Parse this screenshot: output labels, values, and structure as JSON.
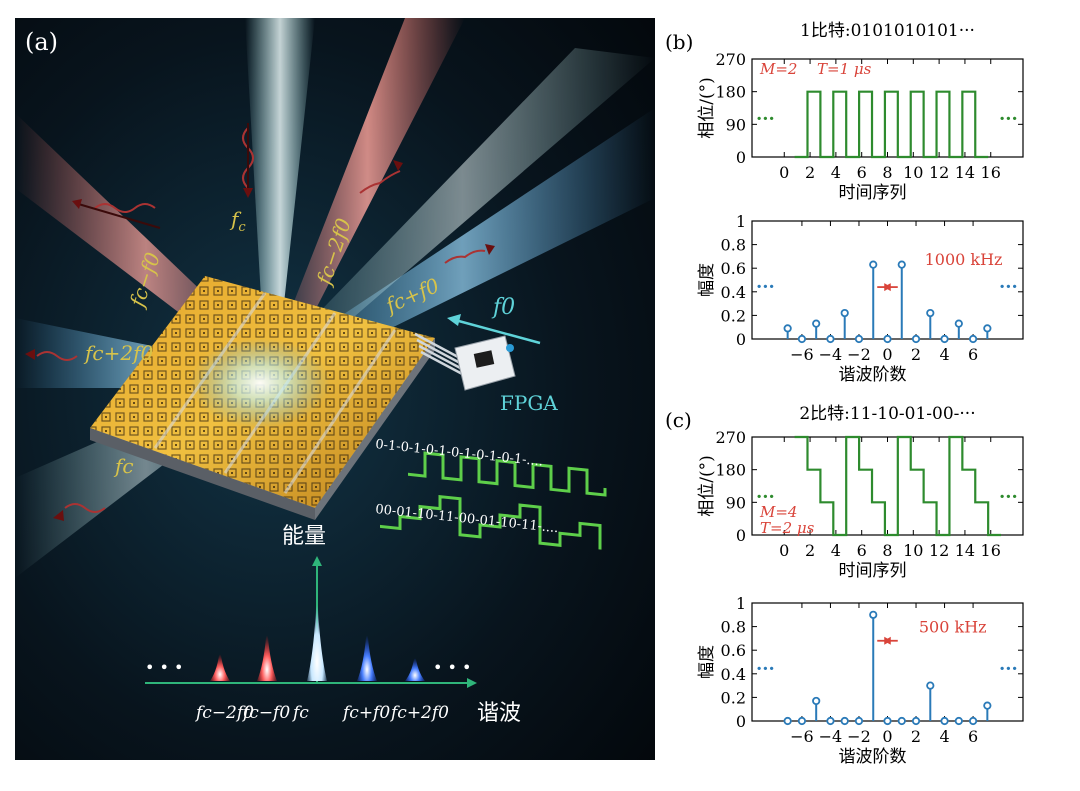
{
  "panel_a": {
    "label": "(a)",
    "beam_labels": {
      "fc_top": "f",
      "fc_top_sub": "c",
      "fc_minus_f0": "fc−f0",
      "fc_minus_2f0": "fc−2f0",
      "fc_plus_f0": "fc+f0",
      "fc_plus_2f0": "fc+2f0",
      "fc_bottom": "fc"
    },
    "f0_label": "f0",
    "fpga_label": "FPGA",
    "seq1": "0-1-0-1-0-1-0-1-0-1-0-1-....",
    "seq2": "00-01-10-11-00-01-10-11-....",
    "energy_label": "能量",
    "harmonic_label": "谐波",
    "dots": "• • •",
    "spectrum_ticks": [
      "fc−2f0",
      "fc−f0",
      "fc",
      "fc+f0",
      "fc+2f0"
    ],
    "spectrum_heights": [
      0.35,
      0.6,
      1.0,
      0.6,
      0.3
    ],
    "colors": {
      "red": "#e0483d",
      "blue": "#2f63d6",
      "white": "#e8f4ff",
      "teal": "#5fd3d9",
      "yellow": "#d7c34a"
    }
  },
  "chart_data": [
    {
      "id": "b1",
      "type": "line",
      "panel": "(b)",
      "title": "1比特:0101010101···",
      "xlabel": "时间序列",
      "ylabel": "相位/(°)",
      "xlim": [
        -2.5,
        18.5
      ],
      "ylim": [
        0,
        270
      ],
      "xticks": [
        0,
        2,
        4,
        6,
        8,
        10,
        12,
        14,
        16
      ],
      "yticks": [
        0,
        90,
        180,
        270
      ],
      "annotation_M": "M=2",
      "annotation_T": "T=1 μs",
      "ellipsis": "···",
      "color": "#2e8b2e",
      "steps": [
        {
          "t0": 0.8,
          "t1": 1.8,
          "v": 0
        },
        {
          "t0": 1.8,
          "t1": 2.8,
          "v": 180
        },
        {
          "t0": 2.8,
          "t1": 3.8,
          "v": 0
        },
        {
          "t0": 3.8,
          "t1": 4.8,
          "v": 180
        },
        {
          "t0": 4.8,
          "t1": 5.8,
          "v": 0
        },
        {
          "t0": 5.8,
          "t1": 6.8,
          "v": 180
        },
        {
          "t0": 6.8,
          "t1": 7.8,
          "v": 0
        },
        {
          "t0": 7.8,
          "t1": 8.8,
          "v": 180
        },
        {
          "t0": 8.8,
          "t1": 9.8,
          "v": 0
        },
        {
          "t0": 9.8,
          "t1": 10.8,
          "v": 180
        },
        {
          "t0": 10.8,
          "t1": 11.8,
          "v": 0
        },
        {
          "t0": 11.8,
          "t1": 12.8,
          "v": 180
        },
        {
          "t0": 12.8,
          "t1": 13.8,
          "v": 0
        },
        {
          "t0": 13.8,
          "t1": 14.8,
          "v": 180
        },
        {
          "t0": 14.8,
          "t1": 15.8,
          "v": 0
        }
      ]
    },
    {
      "id": "b2",
      "type": "stem",
      "xlabel": "谐波阶数",
      "ylabel": "幅度",
      "xlim": [
        -9.5,
        9.5
      ],
      "ylim": [
        0,
        1
      ],
      "xticks": [
        -6,
        -4,
        -2,
        0,
        2,
        4,
        6
      ],
      "yticks": [
        0,
        0.2,
        0.4,
        0.6,
        0.8,
        1
      ],
      "annotation": "1000 kHz",
      "ellipsis": "···",
      "color": "#2a7ab8",
      "x": [
        -7,
        -6,
        -5,
        -4,
        -3,
        -2,
        -1,
        0,
        1,
        2,
        3,
        4,
        5,
        6,
        7
      ],
      "values": [
        0.09,
        0.0,
        0.13,
        0.0,
        0.22,
        0.0,
        0.63,
        0.0,
        0.63,
        0.0,
        0.22,
        0.0,
        0.13,
        0.0,
        0.09
      ]
    },
    {
      "id": "c1",
      "type": "line",
      "panel": "(c)",
      "title": "2比特:11-10-01-00-···",
      "xlabel": "时间序列",
      "ylabel": "相位/(°)",
      "xlim": [
        -2.5,
        18.5
      ],
      "ylim": [
        0,
        270
      ],
      "xticks": [
        0,
        2,
        4,
        6,
        8,
        10,
        12,
        14,
        16
      ],
      "yticks": [
        0,
        90,
        180,
        270
      ],
      "annotation_M": "M=4",
      "annotation_T": "T=2 μs",
      "ellipsis": "···",
      "color": "#2e8b2e",
      "steps": [
        {
          "t0": 0.8,
          "t1": 1.8,
          "v": 270
        },
        {
          "t0": 1.8,
          "t1": 2.8,
          "v": 180
        },
        {
          "t0": 2.8,
          "t1": 3.8,
          "v": 90
        },
        {
          "t0": 3.8,
          "t1": 4.8,
          "v": 0
        },
        {
          "t0": 4.8,
          "t1": 5.8,
          "v": 270
        },
        {
          "t0": 5.8,
          "t1": 6.8,
          "v": 180
        },
        {
          "t0": 6.8,
          "t1": 7.8,
          "v": 90
        },
        {
          "t0": 7.8,
          "t1": 8.8,
          "v": 0
        },
        {
          "t0": 8.8,
          "t1": 9.8,
          "v": 270
        },
        {
          "t0": 9.8,
          "t1": 10.8,
          "v": 180
        },
        {
          "t0": 10.8,
          "t1": 11.8,
          "v": 90
        },
        {
          "t0": 11.8,
          "t1": 12.8,
          "v": 0
        },
        {
          "t0": 12.8,
          "t1": 13.8,
          "v": 270
        },
        {
          "t0": 13.8,
          "t1": 14.8,
          "v": 180
        },
        {
          "t0": 14.8,
          "t1": 15.8,
          "v": 90
        },
        {
          "t0": 15.8,
          "t1": 16.8,
          "v": 0
        }
      ]
    },
    {
      "id": "c2",
      "type": "stem",
      "xlabel": "谐波阶数",
      "ylabel": "幅度",
      "xlim": [
        -9.5,
        9.5
      ],
      "ylim": [
        0,
        1
      ],
      "xticks": [
        -6,
        -4,
        -2,
        0,
        2,
        4,
        6
      ],
      "yticks": [
        0,
        0.2,
        0.4,
        0.6,
        0.8,
        1
      ],
      "annotation": "500 kHz",
      "ellipsis": "···",
      "color": "#2a7ab8",
      "x": [
        -7,
        -6,
        -5,
        -4,
        -3,
        -2,
        -1,
        0,
        1,
        2,
        3,
        4,
        5,
        6,
        7
      ],
      "values": [
        0.0,
        0.0,
        0.17,
        0.0,
        0.0,
        0.0,
        0.9,
        0.0,
        0.0,
        0.0,
        0.3,
        0.0,
        0.0,
        0.0,
        0.13
      ]
    }
  ]
}
